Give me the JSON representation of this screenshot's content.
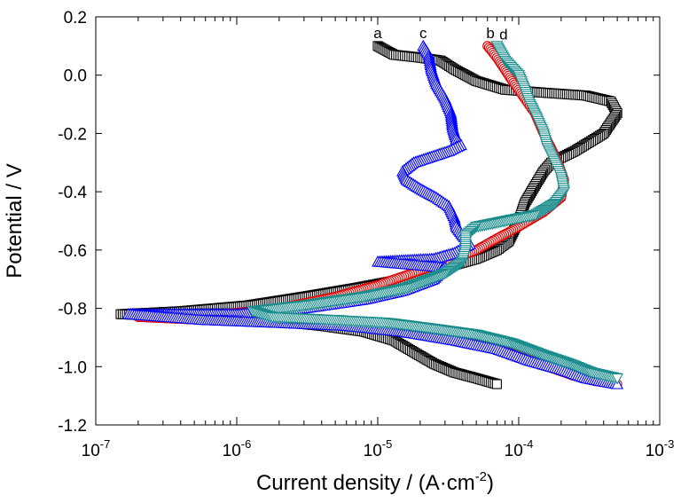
{
  "chart_data": {
    "type": "scatter",
    "title": "",
    "xlabel": {
      "main": "Current density / (A·cm",
      "sup": "-2",
      "tail": ")"
    },
    "ylabel": "Potential / V",
    "xscale": "log",
    "xlim": [
      1e-07,
      0.001
    ],
    "ylim": [
      -1.2,
      0.2
    ],
    "x_ticks": [
      {
        "value": 1e-07,
        "base": "10",
        "exp": "-7"
      },
      {
        "value": 1e-06,
        "base": "10",
        "exp": "-6"
      },
      {
        "value": 1e-05,
        "base": "10",
        "exp": "-5"
      },
      {
        "value": 0.0001,
        "base": "10",
        "exp": "-4"
      },
      {
        "value": 0.001,
        "base": "10",
        "exp": "-3"
      }
    ],
    "y_ticks": [
      {
        "value": 0.2,
        "label": "0.2"
      },
      {
        "value": 0.0,
        "label": "0.0"
      },
      {
        "value": -0.2,
        "label": "-0.2"
      },
      {
        "value": -0.4,
        "label": "-0.4"
      },
      {
        "value": -0.6,
        "label": "-0.6"
      },
      {
        "value": -0.8,
        "label": "-0.8"
      },
      {
        "value": -1.0,
        "label": "-1.0"
      },
      {
        "value": -1.2,
        "label": "-1.2"
      }
    ],
    "grid": false,
    "legend": "none",
    "series": [
      {
        "label": "a",
        "color": "#000000",
        "marker": "square",
        "label_at": [
          1e-05,
          0.145
        ],
        "points": [
          [
            1e-05,
            0.1
          ],
          [
            1.3e-05,
            0.07
          ],
          [
            2e-05,
            0.06
          ],
          [
            2.8e-05,
            0.05
          ],
          [
            3.5e-05,
            0.02
          ],
          [
            5e-05,
            -0.02
          ],
          [
            8e-05,
            -0.05
          ],
          [
            0.00015,
            -0.06
          ],
          [
            0.0003,
            -0.07
          ],
          [
            0.00045,
            -0.09
          ],
          [
            0.0005,
            -0.13
          ],
          [
            0.0004,
            -0.2
          ],
          [
            0.00025,
            -0.26
          ],
          [
            0.00017,
            -0.3
          ],
          [
            0.00015,
            -0.33
          ],
          [
            0.00013,
            -0.38
          ],
          [
            0.00011,
            -0.44
          ],
          [
            0.0001,
            -0.5
          ],
          [
            8.5e-05,
            -0.57
          ],
          [
            7e-05,
            -0.6
          ],
          [
            5e-05,
            -0.63
          ],
          [
            3e-05,
            -0.66
          ],
          [
            1.5e-05,
            -0.7
          ],
          [
            7e-06,
            -0.73
          ],
          [
            3e-06,
            -0.76
          ],
          [
            1.2e-06,
            -0.79
          ],
          [
            4e-07,
            -0.81
          ],
          [
            1.5e-07,
            -0.82
          ],
          [
            4e-07,
            -0.83
          ],
          [
            1.5e-06,
            -0.84
          ],
          [
            4e-06,
            -0.86
          ],
          [
            8e-06,
            -0.88
          ],
          [
            1.3e-05,
            -0.91
          ],
          [
            1.8e-05,
            -0.95
          ],
          [
            2.5e-05,
            -0.99
          ],
          [
            3.5e-05,
            -1.02
          ],
          [
            5e-05,
            -1.04
          ],
          [
            7e-05,
            -1.06
          ]
        ]
      },
      {
        "label": "b",
        "color": "#e00000",
        "marker": "circle",
        "label_at": [
          6.3e-05,
          0.145
        ],
        "points": [
          [
            6e-05,
            0.1
          ],
          [
            7e-05,
            0.06
          ],
          [
            9e-05,
            -0.02
          ],
          [
            0.00011,
            -0.08
          ],
          [
            0.00013,
            -0.13
          ],
          [
            0.00015,
            -0.2
          ],
          [
            0.00017,
            -0.25
          ],
          [
            0.00019,
            -0.3
          ],
          [
            0.00021,
            -0.36
          ],
          [
            0.0002,
            -0.42
          ],
          [
            0.00015,
            -0.47
          ],
          [
            0.0001,
            -0.52
          ],
          [
            7e-05,
            -0.56
          ],
          [
            5e-05,
            -0.6
          ],
          [
            3.5e-05,
            -0.63
          ],
          [
            2e-05,
            -0.67
          ],
          [
            1e-05,
            -0.72
          ],
          [
            5e-06,
            -0.76
          ],
          [
            2e-06,
            -0.8
          ],
          [
            8e-07,
            -0.82
          ],
          [
            2e-07,
            -0.83
          ],
          [
            6e-07,
            -0.84
          ],
          [
            2e-06,
            -0.85
          ],
          [
            6e-06,
            -0.86
          ],
          [
            1.5e-05,
            -0.88
          ],
          [
            3e-05,
            -0.9
          ],
          [
            6e-05,
            -0.93
          ],
          [
            0.0001,
            -0.96
          ],
          [
            0.00016,
            -1.0
          ],
          [
            0.00024,
            -1.03
          ],
          [
            0.00035,
            -1.05
          ],
          [
            0.0005,
            -1.06
          ]
        ]
      },
      {
        "label": "c",
        "color": "#0000ff",
        "marker": "triangle-up",
        "label_at": [
          2.1e-05,
          0.145
        ],
        "points": [
          [
            2.1e-05,
            0.1
          ],
          [
            2.3e-05,
            0.07
          ],
          [
            2.4e-05,
            0.02
          ],
          [
            2.6e-05,
            -0.03
          ],
          [
            3e-05,
            -0.08
          ],
          [
            3.3e-05,
            -0.13
          ],
          [
            3.4e-05,
            -0.18
          ],
          [
            3.6e-05,
            -0.22
          ],
          [
            3.9e-05,
            -0.24
          ],
          [
            3.2e-05,
            -0.26
          ],
          [
            2.4e-05,
            -0.28
          ],
          [
            1.8e-05,
            -0.3
          ],
          [
            1.5e-05,
            -0.33
          ],
          [
            1.6e-05,
            -0.36
          ],
          [
            2e-05,
            -0.39
          ],
          [
            2.6e-05,
            -0.42
          ],
          [
            3.2e-05,
            -0.45
          ],
          [
            3.5e-05,
            -0.49
          ],
          [
            3.6e-05,
            -0.52
          ],
          [
            4e-05,
            -0.55
          ],
          [
            4.5e-05,
            -0.58
          ],
          [
            3.5e-05,
            -0.61
          ],
          [
            2.5e-05,
            -0.63
          ],
          [
            1e-05,
            -0.64
          ],
          [
            3e-05,
            -0.66
          ],
          [
            2.5e-05,
            -0.7
          ],
          [
            1.5e-05,
            -0.74
          ],
          [
            8e-06,
            -0.77
          ],
          [
            3e-06,
            -0.8
          ],
          [
            1e-06,
            -0.82
          ],
          [
            1.7e-07,
            -0.82
          ],
          [
            6e-07,
            -0.84
          ],
          [
            2e-06,
            -0.85
          ],
          [
            6e-06,
            -0.86
          ],
          [
            1.5e-05,
            -0.88
          ],
          [
            3.5e-05,
            -0.91
          ],
          [
            7e-05,
            -0.94
          ],
          [
            0.00012,
            -0.98
          ],
          [
            0.0002,
            -1.01
          ],
          [
            0.0003,
            -1.04
          ],
          [
            0.0005,
            -1.06
          ]
        ]
      },
      {
        "label": "d",
        "color": "#1a8c8c",
        "marker": "triangle-down",
        "label_at": [
          7.8e-05,
          0.14
        ],
        "points": [
          [
            7e-05,
            0.1
          ],
          [
            8e-05,
            0.05
          ],
          [
            0.0001,
            0.0
          ],
          [
            0.00011,
            -0.05
          ],
          [
            0.00012,
            -0.1
          ],
          [
            0.000135,
            -0.15
          ],
          [
            0.00015,
            -0.2
          ],
          [
            0.00016,
            -0.25
          ],
          [
            0.00018,
            -0.3
          ],
          [
            0.0002,
            -0.35
          ],
          [
            0.00021,
            -0.4
          ],
          [
            0.00018,
            -0.44
          ],
          [
            0.00013,
            -0.48
          ],
          [
            8e-05,
            -0.5
          ],
          [
            5e-05,
            -0.52
          ],
          [
            4.2e-05,
            -0.55
          ],
          [
            4.2e-05,
            -0.6
          ],
          [
            4e-05,
            -0.64
          ],
          [
            3e-05,
            -0.68
          ],
          [
            1.6e-05,
            -0.73
          ],
          [
            8e-06,
            -0.76
          ],
          [
            3e-06,
            -0.79
          ],
          [
            1.3e-06,
            -0.81
          ],
          [
            1.8e-06,
            -0.83
          ],
          [
            5e-06,
            -0.84
          ],
          [
            1.2e-05,
            -0.85
          ],
          [
            2.5e-05,
            -0.87
          ],
          [
            5e-05,
            -0.89
          ],
          [
            9e-05,
            -0.92
          ],
          [
            0.00015,
            -0.96
          ],
          [
            0.00023,
            -0.99
          ],
          [
            0.00033,
            -1.02
          ],
          [
            0.0005,
            -1.04
          ]
        ]
      }
    ]
  }
}
